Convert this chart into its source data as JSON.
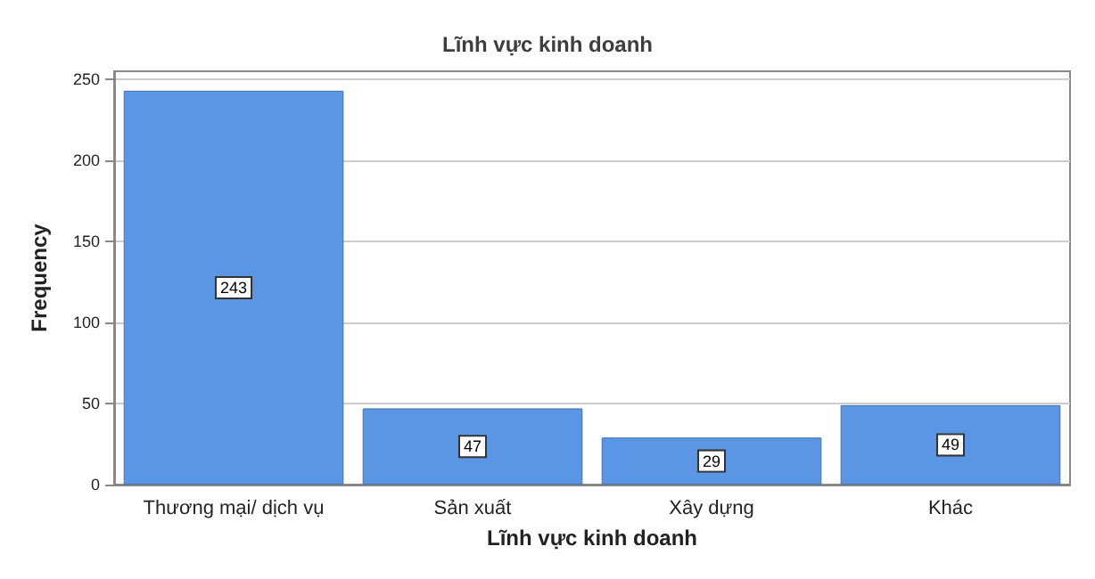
{
  "chart_data": {
    "type": "bar",
    "title": "Lĩnh vực kinh doanh",
    "xlabel": "Lĩnh vực kinh doanh",
    "ylabel": "Frequency",
    "categories": [
      "Thương mại/ dịch vụ",
      "Sản xuất",
      "Xây dựng",
      "Khác"
    ],
    "values": [
      243,
      47,
      29,
      49
    ],
    "color": "#5a96e3",
    "ylim": [
      0,
      255
    ],
    "yticks": [
      0,
      50,
      100,
      150,
      200,
      250
    ],
    "grid": "y",
    "data_labels": true
  }
}
